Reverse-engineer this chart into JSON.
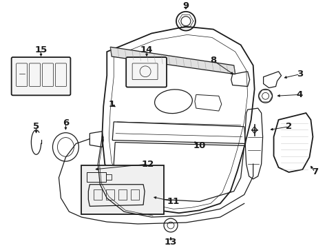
{
  "background_color": "#ffffff",
  "line_color": "#1a1a1a",
  "figsize": [
    4.89,
    3.6
  ],
  "dpi": 100,
  "label_fontsize": 9.5,
  "callout_fontsize": 7.5
}
